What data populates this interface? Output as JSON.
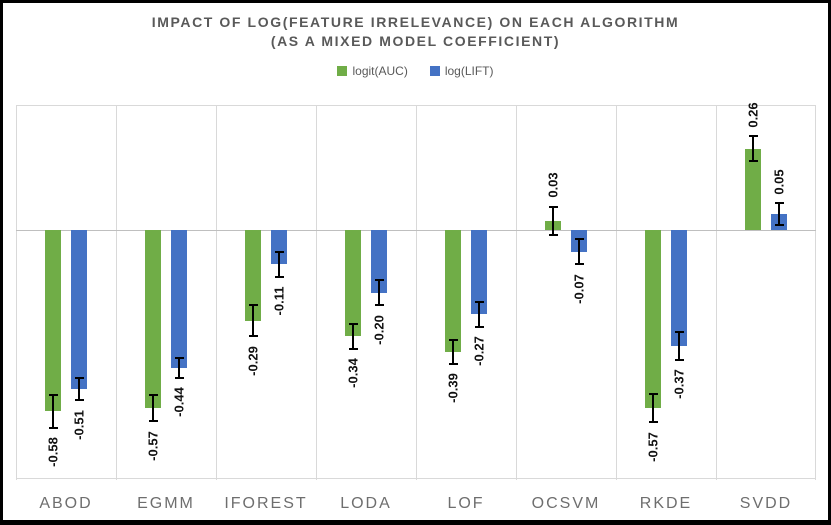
{
  "chart": {
    "title_line1": "IMPACT OF LOG(FEATURE IRRELEVANCE) ON EACH ALGORITHM",
    "title_line2": "(AS A MIXED MODEL COEFFICIENT)"
  },
  "chart_data": {
    "type": "bar",
    "title": "IMPACT OF LOG(FEATURE IRRELEVANCE) ON EACH ALGORITHM (AS A MIXED MODEL COEFFICIENT)",
    "categories": [
      "ABOD",
      "EGMM",
      "IFOREST",
      "LODA",
      "LOF",
      "OCSVM",
      "RKDE",
      "SVDD"
    ],
    "series": [
      {
        "name": "logit(AUC)",
        "color": "#70AD47",
        "values": [
          -0.58,
          -0.57,
          -0.29,
          -0.34,
          -0.39,
          0.03,
          -0.57,
          0.26
        ],
        "labels": [
          "-0.58",
          "-0.57",
          "-0.29",
          "-0.34",
          "-0.39",
          "0.03",
          "-0.57",
          "0.26"
        ],
        "errors": [
          0.053,
          0.042,
          0.05,
          0.04,
          0.038,
          0.045,
          0.045,
          0.04
        ]
      },
      {
        "name": "log(LIFT)",
        "color": "#4472C4",
        "values": [
          -0.51,
          -0.44,
          -0.11,
          -0.2,
          -0.27,
          -0.07,
          -0.37,
          0.05
        ],
        "labels": [
          "-0.51",
          "-0.44",
          "-0.11",
          "-0.20",
          "-0.27",
          "-0.07",
          "-0.37",
          "0.05"
        ],
        "errors": [
          0.035,
          0.032,
          0.04,
          0.04,
          0.04,
          0.04,
          0.045,
          0.035
        ]
      }
    ],
    "ylim": [
      -0.8,
      0.4
    ],
    "xlabel": "",
    "ylabel": "",
    "grid": "vertical category separators; horizontal lines at 0.4, 0.0, -0.8 only",
    "legend_position": "top",
    "error_bars": true,
    "value_labels_rotated_90deg": true,
    "gridline_color": "#D9D9D9",
    "baseline_color": "#BFBFBF",
    "title_color": "#595959",
    "category_label_color": "#6E6E6E",
    "value_label_color": "#111111"
  }
}
